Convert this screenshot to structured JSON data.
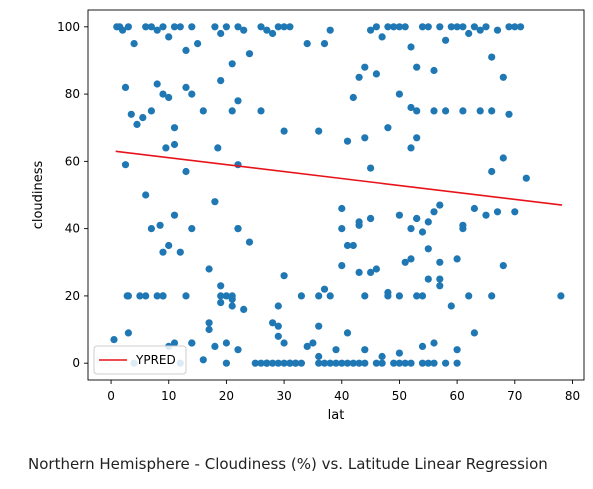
{
  "caption": "Northern Hemisphere - Cloudiness (%) vs. Latitude Linear Regression",
  "chart_data": {
    "type": "scatter",
    "title": "",
    "xlabel": "lat",
    "ylabel": "cloudiness",
    "xlim": [
      -4,
      82
    ],
    "ylim": [
      -5,
      105
    ],
    "xticks": [
      0,
      10,
      20,
      30,
      40,
      50,
      60,
      70,
      80
    ],
    "yticks": [
      0,
      20,
      40,
      60,
      80,
      100
    ],
    "grid": false,
    "legend": {
      "placement": "lower-left",
      "entries": [
        "YPRED"
      ]
    },
    "colors": {
      "points": "#1f77b4",
      "regression": "#e8131a"
    },
    "regression": {
      "name": "YPRED",
      "x": [
        0.8,
        78.2
      ],
      "y": [
        63,
        47
      ]
    },
    "series": [
      {
        "x": [
          1,
          1.5,
          2,
          3,
          4,
          6,
          7,
          8,
          9,
          10,
          11,
          12,
          13,
          14,
          15,
          16,
          18,
          19,
          20,
          21,
          22,
          23,
          24,
          26,
          27,
          28,
          29,
          30,
          31,
          34,
          37,
          38,
          43,
          45,
          46,
          47,
          48,
          49,
          50,
          51,
          52,
          53,
          54,
          55,
          56,
          57,
          58,
          59,
          60,
          61,
          62,
          63,
          64,
          65,
          66,
          67,
          68,
          69,
          70,
          71,
          2.5,
          3.5,
          4.5,
          5.5,
          7,
          8,
          9,
          10,
          11,
          13,
          14,
          19,
          21,
          22,
          26,
          30,
          36,
          42,
          44,
          46,
          48,
          50,
          52,
          53,
          56,
          58,
          61,
          64,
          66,
          69,
          2.5,
          3,
          6,
          8,
          8.5,
          9.5,
          13,
          18,
          18.5,
          22,
          40,
          41,
          43,
          44,
          45,
          50,
          52,
          53,
          66,
          68,
          5,
          7,
          9,
          11,
          20,
          21,
          22,
          36,
          44,
          48,
          53,
          54,
          55,
          57,
          62,
          66,
          11,
          10,
          14,
          9,
          17,
          19,
          22,
          24,
          30,
          29,
          41,
          43,
          45,
          52,
          53,
          55,
          56,
          57,
          61,
          65,
          67,
          68,
          70,
          72,
          2.8,
          6,
          9,
          12,
          13,
          19,
          21,
          29,
          30,
          33,
          36,
          38,
          40,
          43,
          45,
          46,
          48,
          50,
          52,
          54,
          57,
          59,
          61,
          63,
          3,
          4,
          10,
          14,
          17,
          20,
          22,
          27,
          29,
          32,
          35,
          37,
          40,
          42,
          45,
          51,
          53,
          55,
          57,
          60,
          78,
          11,
          14,
          17,
          19,
          21,
          23,
          25,
          27,
          28,
          31,
          34,
          36,
          39,
          41,
          44,
          47,
          50,
          54,
          56,
          60,
          63,
          0.5,
          12,
          16,
          18,
          20,
          26,
          27,
          28,
          29,
          30,
          31,
          32,
          33,
          36,
          37,
          38,
          39,
          40,
          41,
          42,
          43,
          44,
          46,
          47,
          49,
          50,
          51,
          52,
          54,
          55,
          56,
          58,
          60
        ],
        "y": [
          100,
          100,
          99,
          100,
          95,
          100,
          100,
          99,
          100,
          97,
          100,
          100,
          93,
          100,
          95,
          75,
          100,
          98,
          100,
          89,
          100,
          99,
          92,
          100,
          99,
          98,
          100,
          100,
          100,
          95,
          95,
          99,
          85,
          99,
          100,
          97,
          100,
          100,
          100,
          100,
          94,
          88,
          100,
          100,
          87,
          100,
          96,
          100,
          100,
          100,
          98,
          100,
          99,
          100,
          91,
          99,
          85,
          100,
          100,
          100,
          82,
          74,
          71,
          73,
          75,
          83,
          80,
          79,
          70,
          82,
          80,
          84,
          75,
          78,
          75,
          69,
          69,
          79,
          88,
          86,
          70,
          80,
          76,
          75,
          75,
          75,
          75,
          75,
          75,
          74,
          59,
          20,
          20,
          20,
          41,
          64,
          57,
          48,
          64,
          59,
          46,
          66,
          41,
          67,
          58,
          44,
          64,
          67,
          57,
          61,
          20,
          40,
          20,
          44,
          20,
          20,
          40,
          20,
          20,
          20,
          20,
          20,
          25,
          25,
          20,
          20,
          65,
          35,
          40,
          33,
          28,
          23,
          40,
          36,
          26,
          17,
          35,
          27,
          43,
          40,
          43,
          42,
          45,
          30,
          41,
          44,
          45,
          29,
          45,
          55,
          20,
          50,
          20,
          33,
          20,
          20,
          19,
          11,
          6,
          20,
          11,
          20,
          29,
          42,
          27,
          28,
          21,
          20,
          31,
          39,
          23,
          17,
          40,
          46,
          9,
          0,
          5,
          6,
          12,
          6,
          4,
          0,
          8,
          0,
          6,
          22,
          40,
          35,
          43,
          30,
          43,
          34,
          47,
          31,
          20,
          6,
          6,
          10,
          18,
          17,
          16,
          0,
          0,
          12,
          0,
          5,
          2,
          4,
          9,
          4,
          2,
          3,
          5,
          6,
          4,
          9,
          7,
          0,
          1,
          5,
          0,
          0,
          0,
          0,
          0,
          0,
          0,
          0,
          0,
          0,
          0,
          0,
          0,
          0,
          0,
          0,
          0,
          0,
          0,
          0,
          0,
          0,
          0,
          0,
          0,
          0,
          0,
          0,
          0
        ]
      }
    ]
  }
}
